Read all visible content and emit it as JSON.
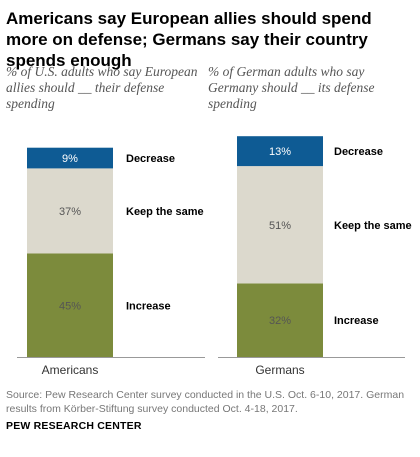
{
  "title": "Americans say European allies should spend more on defense; Germans say their country spends enough",
  "footer": {
    "source": "Source: Pew Research Center survey conducted in the U.S. Oct. 6-10, 2017. German results from Körber-Stiftung survey conducted Oct. 4-18, 2017.",
    "brand": "PEW RESEARCH CENTER"
  },
  "colors": {
    "decrease": "#0e5b94",
    "keep": "#dcd9cd",
    "increase": "#7c8b3c",
    "axis": "#999999"
  },
  "chart_data": [
    {
      "type": "bar",
      "stacked": true,
      "subtitle": "% of U.S. adults who say European allies should __ their defense spending",
      "categories": [
        "Americans"
      ],
      "series": [
        {
          "name": "Increase",
          "values": [
            45
          ],
          "label": "45%"
        },
        {
          "name": "Keep the same",
          "values": [
            37
          ],
          "label": "37%"
        },
        {
          "name": "Decrease",
          "values": [
            9
          ],
          "label": "9%"
        }
      ],
      "ylim": [
        0,
        100
      ]
    },
    {
      "type": "bar",
      "stacked": true,
      "subtitle": "% of German adults who say Germany should __ its defense spending",
      "categories": [
        "Germans"
      ],
      "series": [
        {
          "name": "Increase",
          "values": [
            32
          ],
          "label": "32%"
        },
        {
          "name": "Keep the same",
          "values": [
            51
          ],
          "label": "51%"
        },
        {
          "name": "Decrease",
          "values": [
            13
          ],
          "label": "13%"
        }
      ],
      "ylim": [
        0,
        100
      ]
    }
  ]
}
